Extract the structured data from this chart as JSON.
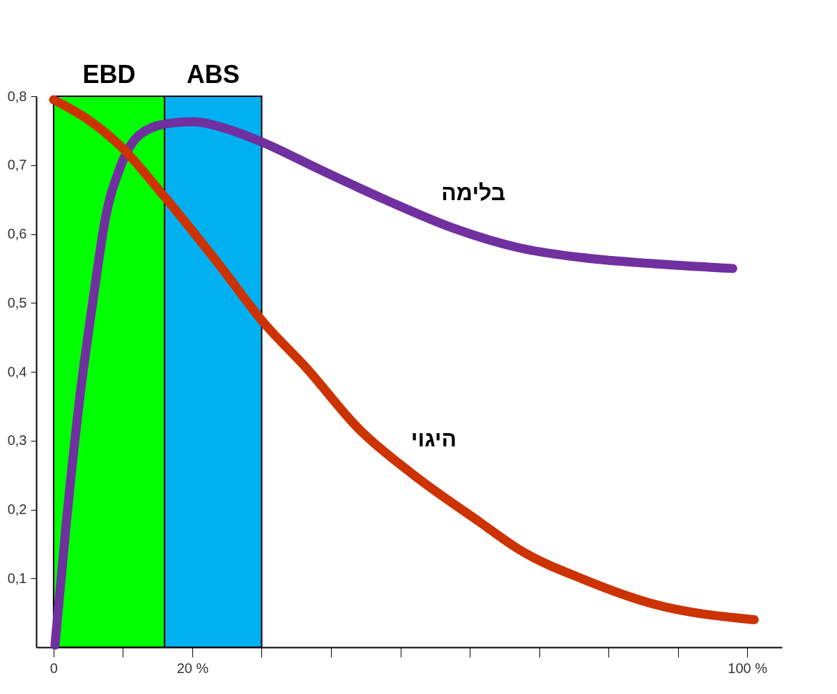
{
  "chart_data": {
    "type": "line",
    "xlim": [
      -2.5,
      105
    ],
    "ylim": [
      0,
      0.8
    ],
    "xticks": [
      0,
      {
        "value": 10,
        "label": null
      },
      {
        "value": 20,
        "label": "20 %"
      },
      {
        "value": 30,
        "label": null
      },
      {
        "value": 40,
        "label": null
      },
      {
        "value": 50,
        "label": null
      },
      {
        "value": 60,
        "label": null
      },
      {
        "value": 70,
        "label": null
      },
      {
        "value": 80,
        "label": null
      },
      {
        "value": 90,
        "label": null
      },
      {
        "value": 100,
        "label": "100 %"
      }
    ],
    "yticks": [
      {
        "value": 0.1,
        "label": "0,1"
      },
      {
        "value": 0.2,
        "label": "0,2"
      },
      {
        "value": 0.3,
        "label": "0,3"
      },
      {
        "value": 0.4,
        "label": "0,4"
      },
      {
        "value": 0.5,
        "label": "0,5"
      },
      {
        "value": 0.6,
        "label": "0,6"
      },
      {
        "value": 0.7,
        "label": "0,7"
      },
      {
        "value": 0.8,
        "label": "0,8"
      }
    ],
    "line_style": "solid",
    "bands": [
      {
        "axis": "x",
        "from": 0,
        "to": 16,
        "label": "EBD",
        "color": "#00ff00"
      },
      {
        "axis": "x",
        "from": 16,
        "to": 30,
        "label": "ABS",
        "color": "#00b0f0"
      }
    ],
    "series": [
      {
        "name": "בלימה",
        "color": "#7030a0",
        "x": [
          0.2,
          1.8,
          3.7,
          5.7,
          7.5,
          9.5,
          12.4,
          16.2,
          20.1,
          24.9,
          30.4,
          38.3,
          48,
          57.5,
          67.1,
          76.8,
          86.4,
          97.9
        ],
        "values": [
          0.003,
          0.177,
          0.356,
          0.505,
          0.624,
          0.694,
          0.744,
          0.76,
          0.763,
          0.753,
          0.732,
          0.694,
          0.649,
          0.609,
          0.58,
          0.565,
          0.557,
          0.55
        ]
      },
      {
        "name": "היגוי",
        "color": "#cc3300",
        "x": [
          0,
          4.7,
          9.5,
          16,
          23.9,
          30.4,
          36.4,
          44.1,
          51.8,
          61.4,
          67.1,
          76.8,
          86.4,
          101
        ],
        "values": [
          0.795,
          0.768,
          0.729,
          0.654,
          0.555,
          0.47,
          0.406,
          0.316,
          0.251,
          0.182,
          0.142,
          0.097,
          0.063,
          0.04
        ]
      }
    ]
  }
}
